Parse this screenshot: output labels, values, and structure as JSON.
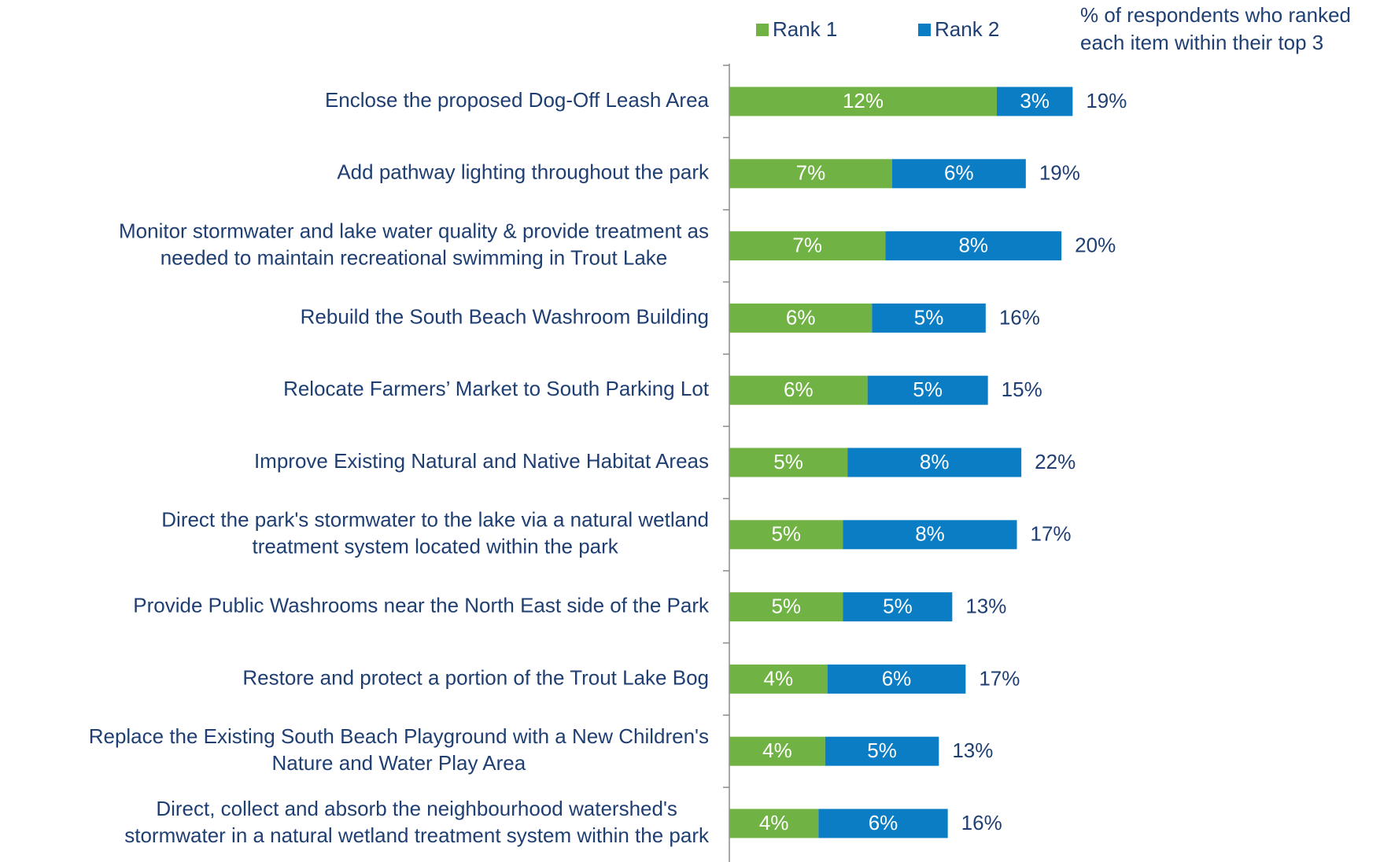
{
  "chart_data": {
    "type": "stacked-bar-horizontal",
    "categories": [
      [
        "Enclose the proposed Dog-Off Leash Area"
      ],
      [
        "Add pathway lighting throughout the park"
      ],
      [
        "Monitor stormwater and lake water quality & provide treatment as",
        "needed to maintain recreational swimming in Trout Lake"
      ],
      [
        "Rebuild the South Beach Washroom Building"
      ],
      [
        "Relocate Farmers’ Market to South Parking Lot"
      ],
      [
        "Improve Existing Natural and Native Habitat Areas"
      ],
      [
        "Direct the park's stormwater to the lake via a natural wetland",
        "treatment system located within the park"
      ],
      [
        "Provide Public Washrooms near the North East side of the Park"
      ],
      [
        "Restore and protect a portion of the Trout Lake Bog"
      ],
      [
        "Replace the Existing South Beach Playground with a New Children's",
        "Nature and Water Play Area"
      ],
      [
        "Direct, collect and absorb the neighbourhood watershed's",
        "stormwater in a natural wetland treatment system within the park"
      ]
    ],
    "series": [
      {
        "name": "Rank 1",
        "color": "#70b244",
        "values": [
          12.0,
          7.3,
          7.0,
          6.4,
          6.2,
          5.3,
          5.1,
          5.1,
          4.4,
          4.3,
          4.0
        ],
        "value_labels": [
          "12%",
          "7%",
          "7%",
          "6%",
          "6%",
          "5%",
          "5%",
          "5%",
          "4%",
          "4%",
          "4%"
        ]
      },
      {
        "name": "Rank 2",
        "color": "#0a7dc4",
        "values": [
          3.4,
          6.0,
          7.9,
          5.1,
          5.4,
          7.8,
          7.8,
          4.9,
          6.2,
          5.1,
          5.8
        ],
        "value_labels": [
          "3%",
          "6%",
          "8%",
          "5%",
          "5%",
          "8%",
          "8%",
          "5%",
          "6%",
          "5%",
          "6%"
        ]
      }
    ],
    "total": {
      "label": [
        "% of respondents who ranked",
        "each item within their top 3"
      ],
      "values": [
        19,
        19,
        20,
        16,
        15,
        22,
        17,
        13,
        17,
        13,
        16
      ],
      "value_labels": [
        "19%",
        "19%",
        "20%",
        "16%",
        "15%",
        "22%",
        "17%",
        "13%",
        "17%",
        "13%",
        "16%"
      ]
    },
    "xlim": [
      0,
      30
    ],
    "legend": "top"
  }
}
